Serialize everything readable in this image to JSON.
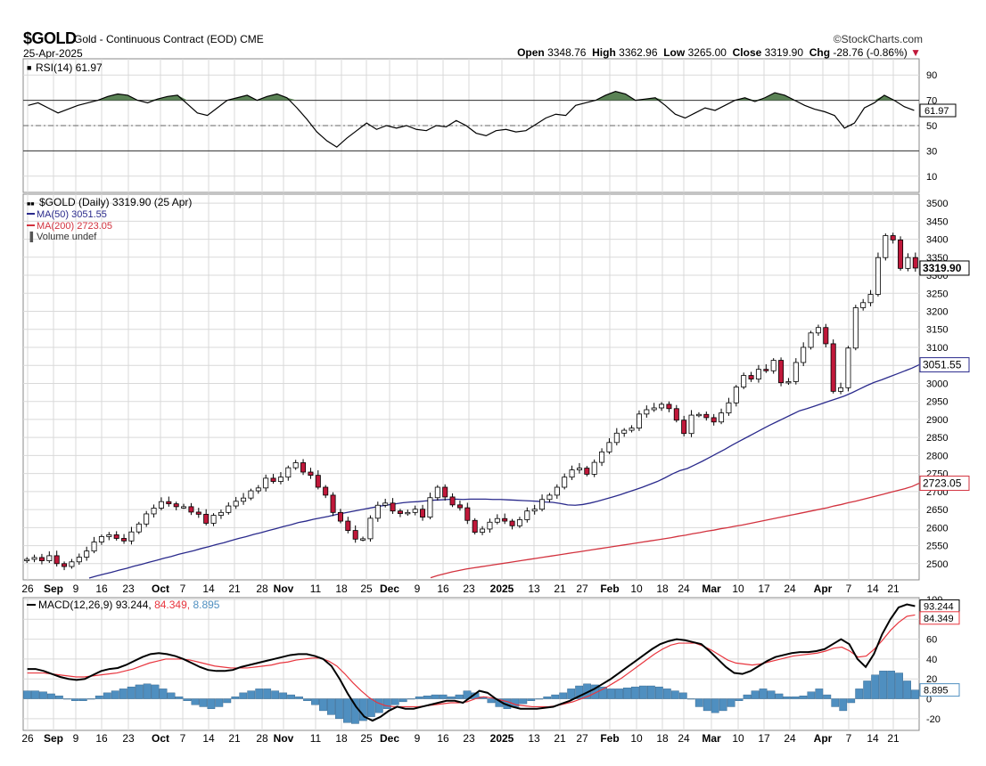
{
  "header": {
    "symbol": "$GOLD",
    "description": "Gold - Continuous Contract (EOD)",
    "exchange": "CME",
    "date": "25-Apr-2025",
    "watermark": "©StockCharts.com",
    "open_label": "Open",
    "open": "3348.76",
    "high_label": "High",
    "high": "3362.96",
    "low_label": "Low",
    "low": "3265.00",
    "close_label": "Close",
    "close": "3319.90",
    "chg_label": "Chg",
    "chg": "-28.76 (-0.86%)",
    "chg_arrow": "▼"
  },
  "colors": {
    "up": "#ffffff",
    "down": "#c0183a",
    "candle_edge": "#000000",
    "ma50": "#2a2a8c",
    "ma200": "#d2323e",
    "histogram": "#4f8fc0",
    "rsi_line": "#000000",
    "rsi_fill": "#5a8255",
    "macd_line": "#000000",
    "signal_line": "#e8353e",
    "grid": "#d9d9d9"
  },
  "chart_data": [
    {
      "type": "line",
      "name": "rsi",
      "title": "RSI(14) 61.97",
      "current": "61.97",
      "ylim": [
        0,
        100
      ],
      "ticks": [
        "90",
        "70",
        "50",
        "30",
        "10"
      ],
      "overbought": 70,
      "oversold": 30,
      "midline": 50,
      "values": [
        66,
        68,
        64,
        60,
        63,
        66,
        68,
        70,
        73,
        75,
        74,
        70,
        68,
        71,
        73,
        74,
        67,
        60,
        58,
        64,
        70,
        72,
        74,
        70,
        73,
        75,
        72,
        64,
        55,
        45,
        38,
        33,
        40,
        46,
        52,
        47,
        50,
        48,
        50,
        47,
        46,
        50,
        49,
        54,
        50,
        44,
        42,
        46,
        47,
        45,
        46,
        51,
        56,
        59,
        58,
        66,
        68,
        70,
        74,
        77,
        75,
        70,
        71,
        72,
        66,
        59,
        56,
        60,
        64,
        62,
        66,
        70,
        72,
        69,
        72,
        76,
        74,
        70,
        66,
        63,
        61,
        58,
        48,
        52,
        64,
        68,
        74,
        70,
        65,
        62
      ]
    },
    {
      "type": "candlestick",
      "name": "price",
      "title": "$GOLD (Daily) 3319.90 (25 Apr)",
      "legend": [
        "$GOLD (Daily) 3319.90 (25 Apr)",
        "MA(50) 3051.55",
        "MA(200) 2723.05",
        "Volume undef"
      ],
      "ylim": [
        2460,
        3520
      ],
      "yticks": [
        "3500",
        "3450",
        "3400",
        "3350",
        "3300",
        "3250",
        "3200",
        "3150",
        "3100",
        "3050",
        "3000",
        "2950",
        "2900",
        "2850",
        "2800",
        "2750",
        "2700",
        "2650",
        "2600",
        "2550",
        "2500"
      ],
      "close_label": "3319.90",
      "ma50_label": "3051.55",
      "ma200_label": "2723.05",
      "closes": [
        2512,
        2517,
        2508,
        2522,
        2500,
        2492,
        2505,
        2518,
        2535,
        2560,
        2575,
        2580,
        2570,
        2563,
        2588,
        2610,
        2638,
        2654,
        2672,
        2666,
        2658,
        2658,
        2643,
        2637,
        2612,
        2634,
        2642,
        2660,
        2673,
        2682,
        2702,
        2710,
        2737,
        2728,
        2740,
        2766,
        2780,
        2754,
        2745,
        2712,
        2690,
        2642,
        2618,
        2592,
        2568,
        2569,
        2626,
        2662,
        2668,
        2646,
        2639,
        2642,
        2651,
        2629,
        2683,
        2712,
        2685,
        2663,
        2655,
        2620,
        2587,
        2596,
        2615,
        2625,
        2618,
        2605,
        2622,
        2646,
        2651,
        2678,
        2690,
        2712,
        2740,
        2760,
        2765,
        2748,
        2781,
        2810,
        2836,
        2862,
        2870,
        2876,
        2915,
        2927,
        2932,
        2942,
        2930,
        2898,
        2861,
        2912,
        2914,
        2905,
        2893,
        2918,
        2946,
        2990,
        3022,
        3012,
        3039,
        3035,
        3064,
        3002,
        3005,
        3058,
        3100,
        3140,
        3155,
        3110,
        2978,
        2988,
        3098,
        3210,
        3224,
        3247,
        3349,
        3410,
        3398,
        3319,
        3349,
        3320
      ],
      "ma50": [
        2460,
        2466,
        2471,
        2476,
        2482,
        2487,
        2493,
        2498,
        2504,
        2509,
        2515,
        2520,
        2526,
        2531,
        2536,
        2542,
        2547,
        2553,
        2558,
        2564,
        2570,
        2575,
        2581,
        2586,
        2592,
        2597,
        2603,
        2608,
        2614,
        2618,
        2623,
        2627,
        2631,
        2636,
        2640,
        2644,
        2648,
        2652,
        2656,
        2660,
        2663,
        2666,
        2669,
        2671,
        2672,
        2674,
        2676,
        2677,
        2678,
        2679,
        2678,
        2679,
        2679,
        2679,
        2678,
        2678,
        2677,
        2676,
        2675,
        2674,
        2673,
        2671,
        2670,
        2667,
        2663,
        2662,
        2664,
        2668,
        2673,
        2679,
        2685,
        2691,
        2698,
        2705,
        2712,
        2720,
        2728,
        2738,
        2749,
        2758,
        2764,
        2774,
        2784,
        2795,
        2806,
        2817,
        2829,
        2840,
        2851,
        2862,
        2873,
        2884,
        2894,
        2904,
        2914,
        2924,
        2930,
        2937,
        2944,
        2951,
        2958,
        2965,
        2974,
        2984,
        2994,
        3003,
        3010,
        3018,
        3026,
        3034,
        3042,
        3051.55
      ],
      "ma200": [
        2461,
        2467,
        2472,
        2477,
        2481,
        2485,
        2488,
        2491,
        2494,
        2497,
        2500,
        2503,
        2506,
        2509,
        2512,
        2515,
        2518,
        2521,
        2524,
        2527,
        2530,
        2533,
        2536,
        2539,
        2542,
        2545,
        2548,
        2551,
        2554,
        2557,
        2560,
        2563,
        2566,
        2569,
        2572,
        2576,
        2579,
        2583,
        2586,
        2590,
        2593,
        2597,
        2600,
        2604,
        2607,
        2611,
        2615,
        2619,
        2623,
        2627,
        2631,
        2635,
        2639,
        2643,
        2647,
        2651,
        2655,
        2660,
        2664,
        2669,
        2673,
        2678,
        2683,
        2688,
        2693,
        2698,
        2703,
        2708,
        2714,
        2723.05
      ]
    },
    {
      "type": "line",
      "name": "macd",
      "title": "MACD(12,26,9) 93.244, 84.349, 8.895",
      "legend": [
        "MACD(12,26,9)",
        "93.244",
        "84.349",
        "8.895"
      ],
      "ylim": [
        -30,
        100
      ],
      "yticks": [
        "100",
        "80",
        "60",
        "40",
        "20",
        "0",
        "-20"
      ],
      "macd_label": "93.244",
      "signal_label": "84.349",
      "hist_label": "8.895",
      "macd": [
        30,
        30,
        28,
        25,
        22,
        20,
        19,
        20,
        24,
        28,
        30,
        31,
        34,
        38,
        42,
        45,
        46,
        45,
        43,
        40,
        36,
        32,
        29,
        28,
        28,
        29,
        32,
        34,
        36,
        38,
        40,
        42,
        44,
        45,
        45,
        43,
        40,
        33,
        20,
        5,
        -8,
        -18,
        -22,
        -18,
        -12,
        -8,
        -10,
        -10,
        -8,
        -6,
        -4,
        -2,
        -2,
        -4,
        2,
        8,
        6,
        0,
        -5,
        -8,
        -10,
        -10,
        -10,
        -9,
        -8,
        -5,
        -2,
        2,
        6,
        10,
        15,
        20,
        26,
        32,
        38,
        44,
        50,
        55,
        58,
        60,
        59,
        57,
        55,
        48,
        40,
        32,
        26,
        25,
        28,
        33,
        38,
        42,
        44,
        46,
        47,
        47,
        48,
        50,
        55,
        60,
        55,
        40,
        32,
        45,
        65,
        80,
        92,
        95,
        93.244
      ],
      "signal": [
        26,
        26,
        26,
        25,
        24,
        23,
        22,
        22,
        23,
        24,
        25,
        26,
        28,
        30,
        33,
        36,
        38,
        40,
        40,
        40,
        39,
        37,
        35,
        33,
        32,
        31,
        31,
        31,
        32,
        33,
        34,
        36,
        37,
        39,
        40,
        41,
        41,
        38,
        33,
        25,
        16,
        8,
        1,
        -4,
        -7,
        -8,
        -8,
        -8,
        -8,
        -7,
        -6,
        -5,
        -4,
        -4,
        -3,
        0,
        2,
        1,
        -1,
        -3,
        -6,
        -7,
        -8,
        -8,
        -8,
        -7,
        -5,
        -3,
        0,
        3,
        7,
        11,
        16,
        21,
        27,
        33,
        39,
        45,
        50,
        54,
        56,
        56,
        56,
        53,
        49,
        44,
        39,
        36,
        35,
        34,
        35,
        37,
        39,
        41,
        43,
        44,
        45,
        46,
        48,
        51,
        52,
        48,
        42,
        43,
        50,
        59,
        69,
        77,
        83,
        84.349
      ],
      "histogram": [
        8,
        8,
        7,
        5,
        3,
        0,
        -2,
        -2,
        0,
        3,
        6,
        8,
        10,
        12,
        14,
        15,
        14,
        10,
        6,
        2,
        -2,
        -6,
        -8,
        -10,
        -8,
        -4,
        2,
        6,
        8,
        10,
        10,
        8,
        6,
        4,
        2,
        -2,
        -6,
        -12,
        -16,
        -20,
        -24,
        -25,
        -22,
        -18,
        -14,
        -10,
        -6,
        -3,
        0,
        2,
        3,
        4,
        4,
        2,
        4,
        8,
        6,
        2,
        -4,
        -8,
        -10,
        -8,
        -5,
        -2,
        0,
        2,
        4,
        6,
        10,
        13,
        15,
        14,
        12,
        10,
        10,
        11,
        12,
        13,
        13,
        12,
        10,
        8,
        6,
        0,
        -8,
        -12,
        -14,
        -12,
        -8,
        -2,
        4,
        8,
        10,
        8,
        5,
        2,
        2,
        3,
        7,
        10,
        4,
        -8,
        -12,
        -4,
        10,
        18,
        24,
        28,
        28,
        26,
        18,
        8.895
      ]
    }
  ],
  "xaxis": {
    "labels": [
      {
        "text": "26",
        "bold": false
      },
      {
        "text": "Sep",
        "bold": true
      },
      {
        "text": "9",
        "bold": false
      },
      {
        "text": "16",
        "bold": false
      },
      {
        "text": "23",
        "bold": false
      },
      {
        "text": "Oct",
        "bold": true
      },
      {
        "text": "7",
        "bold": false
      },
      {
        "text": "14",
        "bold": false
      },
      {
        "text": "21",
        "bold": false
      },
      {
        "text": "28",
        "bold": false
      },
      {
        "text": "Nov",
        "bold": true
      },
      {
        "text": "11",
        "bold": false
      },
      {
        "text": "18",
        "bold": false
      },
      {
        "text": "25",
        "bold": false
      },
      {
        "text": "Dec",
        "bold": true
      },
      {
        "text": "9",
        "bold": false
      },
      {
        "text": "16",
        "bold": false
      },
      {
        "text": "23",
        "bold": false
      },
      {
        "text": "2025",
        "bold": true
      },
      {
        "text": "13",
        "bold": false
      },
      {
        "text": "21",
        "bold": false
      },
      {
        "text": "27",
        "bold": false
      },
      {
        "text": "Feb",
        "bold": true
      },
      {
        "text": "10",
        "bold": false
      },
      {
        "text": "18",
        "bold": false
      },
      {
        "text": "24",
        "bold": false
      },
      {
        "text": "Mar",
        "bold": true
      },
      {
        "text": "10",
        "bold": false
      },
      {
        "text": "17",
        "bold": false
      },
      {
        "text": "24",
        "bold": false
      },
      {
        "text": "Apr",
        "bold": true
      },
      {
        "text": "7",
        "bold": false
      },
      {
        "text": "14",
        "bold": false
      },
      {
        "text": "21",
        "bold": false
      }
    ]
  }
}
